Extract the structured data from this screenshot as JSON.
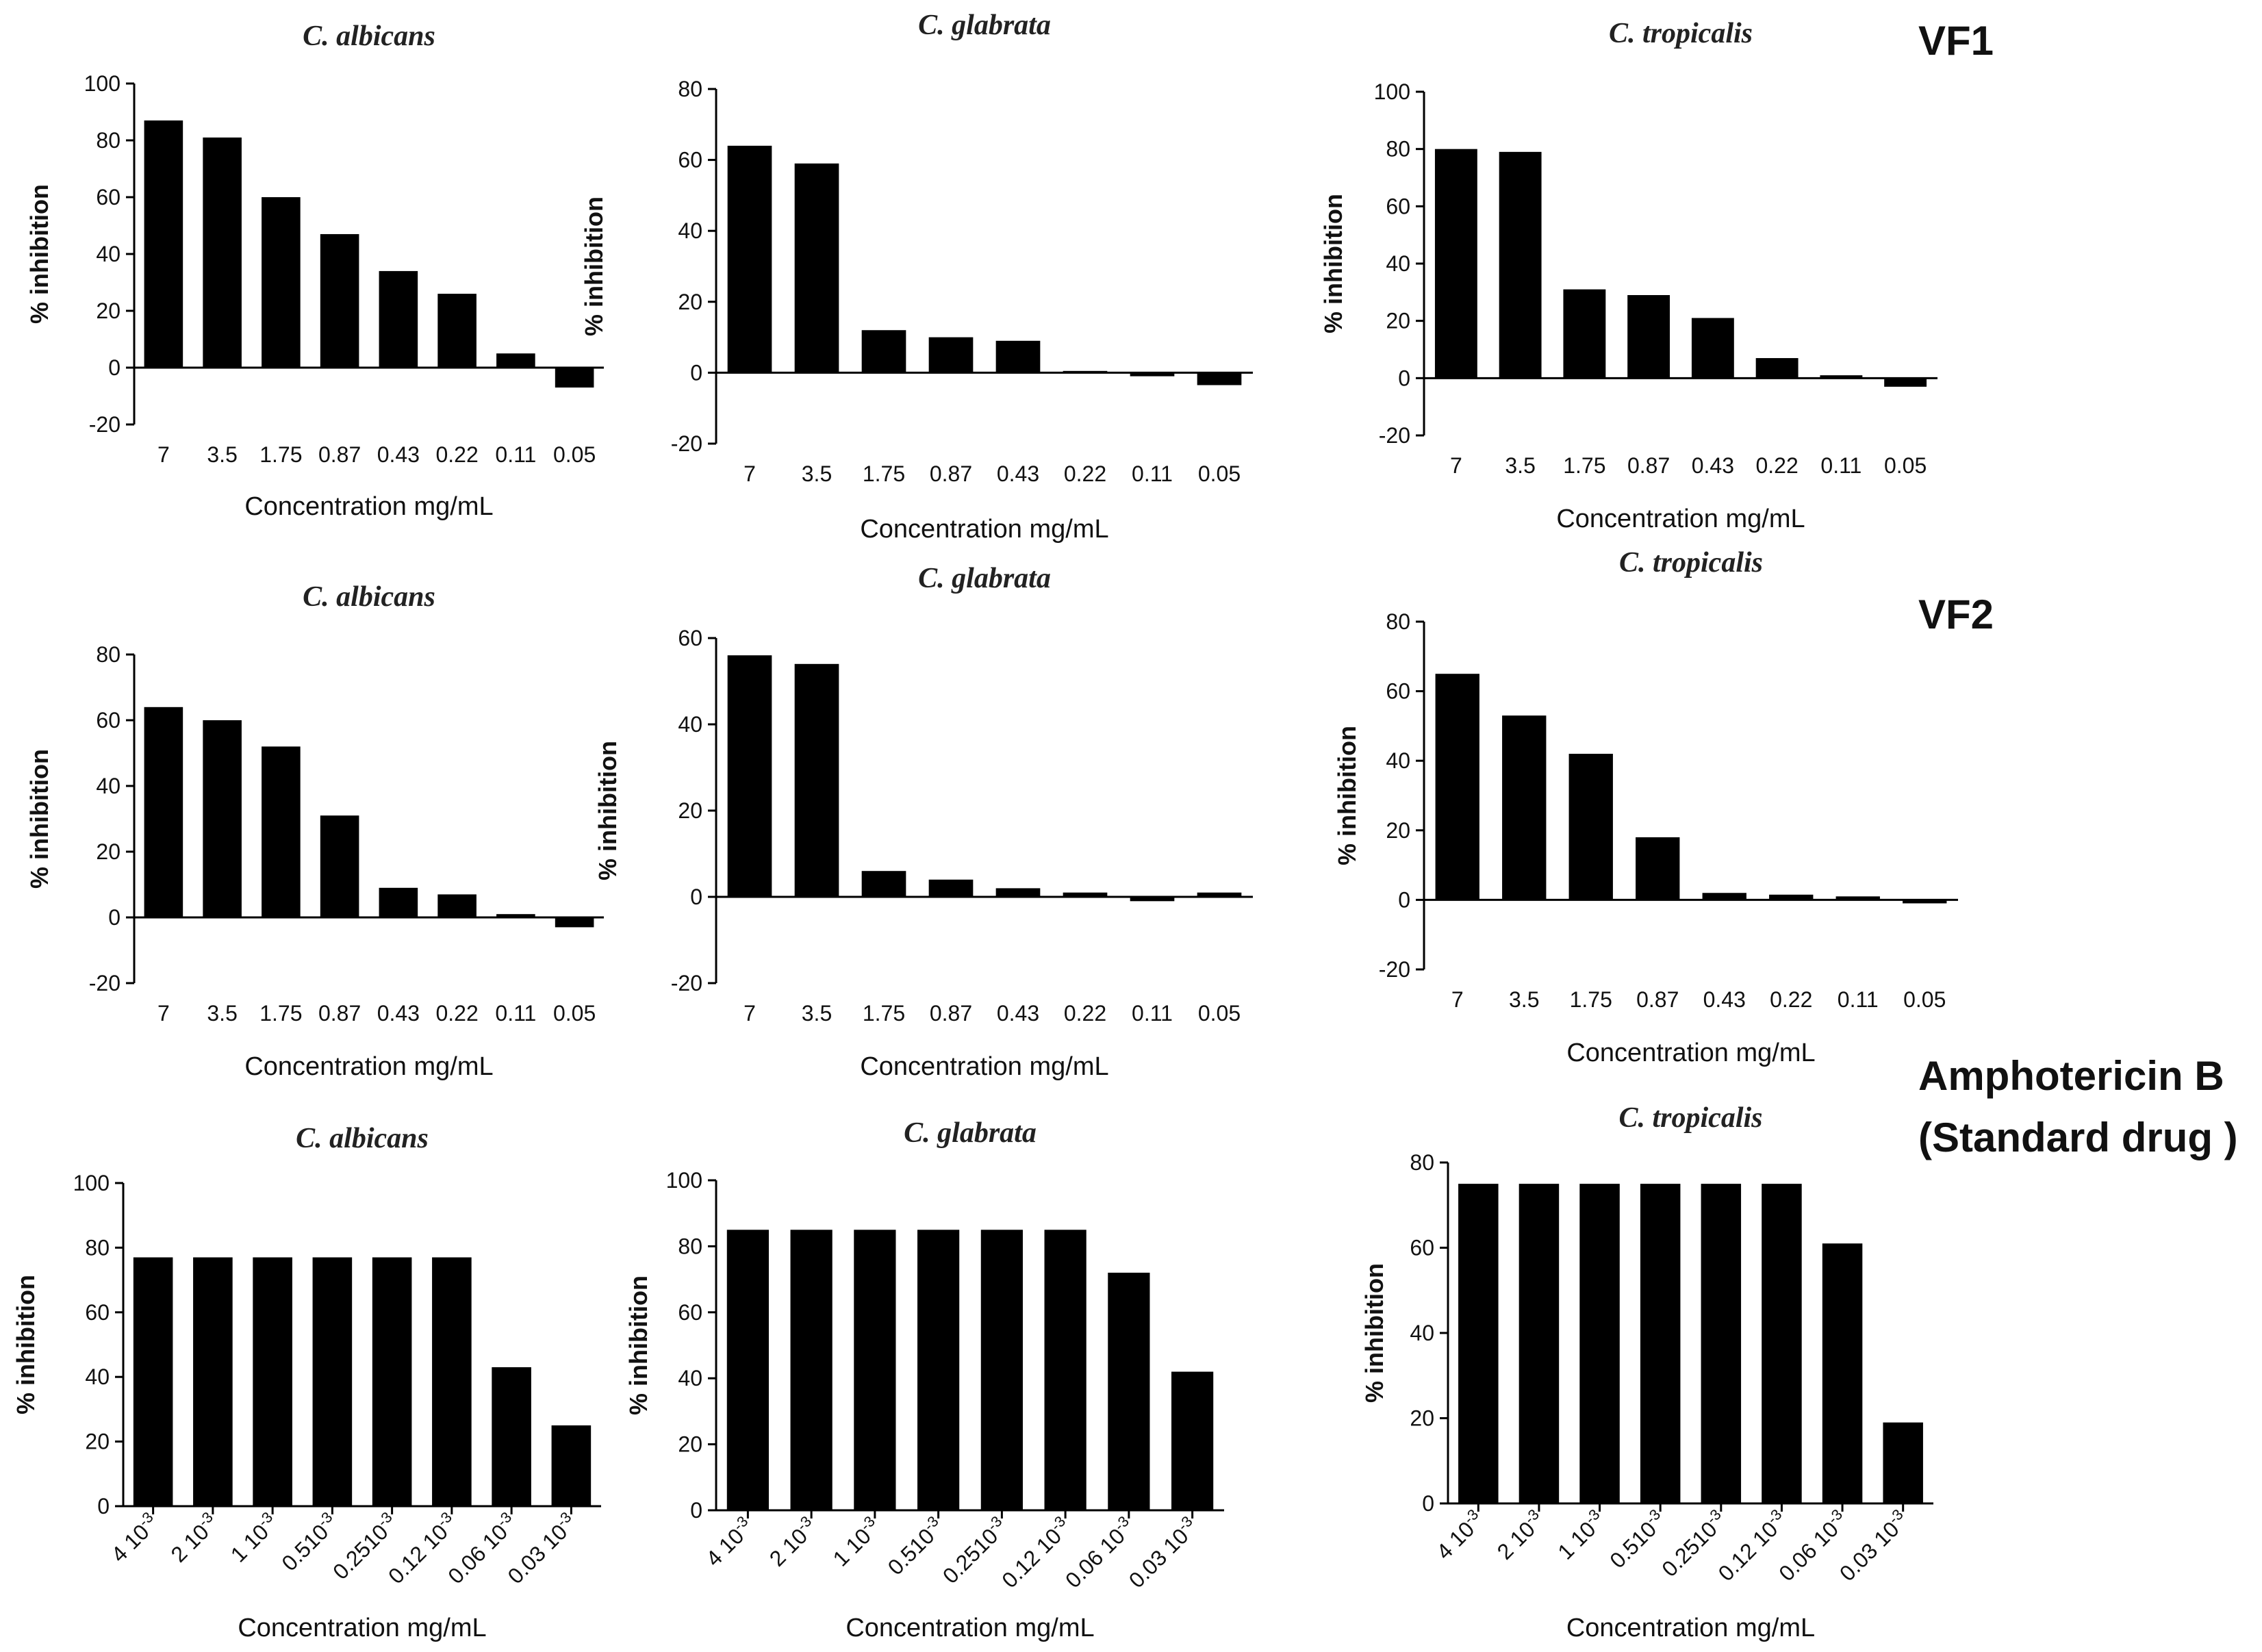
{
  "side_labels": {
    "vf1": "VF1",
    "vf2": "VF2",
    "amph_line1": "Amphotericin B",
    "amph_line2": "(Standard drug )"
  },
  "chart_data": [
    {
      "type": "bar",
      "title": "C. albicans",
      "xlabel": "Concentration mg/mL",
      "ylabel": "% inhibition",
      "categories": [
        "7",
        "3.5",
        "1.75",
        "0.87",
        "0.43",
        "0.22",
        "0.11",
        "0.05"
      ],
      "values": [
        87,
        81,
        60,
        47,
        34,
        26,
        5,
        -7
      ],
      "ylim": [
        -20,
        100
      ],
      "yticks": [
        -20,
        0,
        20,
        40,
        60,
        80,
        100
      ]
    },
    {
      "type": "bar",
      "title": "C. glabrata",
      "xlabel": "Concentration mg/mL",
      "ylabel": "% inhibition",
      "categories": [
        "7",
        "3.5",
        "1.75",
        "0.87",
        "0.43",
        "0.22",
        "0.11",
        "0.05"
      ],
      "values": [
        64,
        59,
        12,
        10,
        9,
        0.5,
        -1,
        -3.5
      ],
      "ylim": [
        -20,
        80
      ],
      "yticks": [
        -20,
        0,
        20,
        40,
        60,
        80
      ]
    },
    {
      "type": "bar",
      "title": "C. tropicalis",
      "xlabel": "Concentration mg/mL",
      "ylabel": "% inhibition",
      "categories": [
        "7",
        "3.5",
        "1.75",
        "0.87",
        "0.43",
        "0.22",
        "0.11",
        "0.05"
      ],
      "values": [
        80,
        79,
        31,
        29,
        21,
        7,
        1,
        -3
      ],
      "ylim": [
        -20,
        100
      ],
      "yticks": [
        -20,
        0,
        20,
        40,
        60,
        80,
        100
      ]
    },
    {
      "type": "bar",
      "title": "C. albicans",
      "xlabel": "Concentration mg/mL",
      "ylabel": "% inhibition",
      "categories": [
        "7",
        "3.5",
        "1.75",
        "0.87",
        "0.43",
        "0.22",
        "0.11",
        "0.05"
      ],
      "values": [
        64,
        60,
        52,
        31,
        9,
        7,
        1,
        -3
      ],
      "ylim": [
        -20,
        80
      ],
      "yticks": [
        -20,
        0,
        20,
        40,
        60,
        80
      ]
    },
    {
      "type": "bar",
      "title": "C. glabrata",
      "xlabel": "Concentration mg/mL",
      "ylabel": "% inhibition",
      "categories": [
        "7",
        "3.5",
        "1.75",
        "0.87",
        "0.43",
        "0.22",
        "0.11",
        "0.05"
      ],
      "values": [
        56,
        54,
        6,
        4,
        2,
        1,
        -1,
        1
      ],
      "ylim": [
        -20,
        60
      ],
      "yticks": [
        -20,
        0,
        20,
        40,
        60
      ]
    },
    {
      "type": "bar",
      "title": "C. tropicalis",
      "xlabel": "Concentration mg/mL",
      "ylabel": "% inhibition",
      "categories": [
        "7",
        "3.5",
        "1.75",
        "0.87",
        "0.43",
        "0.22",
        "0.11",
        "0.05"
      ],
      "values": [
        65,
        53,
        42,
        18,
        2,
        1.5,
        1,
        -1
      ],
      "ylim": [
        -20,
        80
      ],
      "yticks": [
        -20,
        0,
        20,
        40,
        60,
        80
      ]
    },
    {
      "type": "bar",
      "title": "C. albicans",
      "xlabel": "Concentration mg/mL",
      "ylabel": "% inhibition",
      "categories": [
        "4 10-3",
        "2 10-3",
        "1 10-3",
        "0.510-3",
        "0.2510-3",
        "0.12 10-3",
        "0.06 10-3",
        "0.03 10-3"
      ],
      "values": [
        77,
        77,
        77,
        77,
        77,
        77,
        43,
        25
      ],
      "ylim": [
        0,
        100
      ],
      "yticks": [
        0,
        20,
        40,
        60,
        80,
        100
      ]
    },
    {
      "type": "bar",
      "title": "C. glabrata",
      "xlabel": "Concentration mg/mL",
      "ylabel": "% inhibition",
      "categories": [
        "4 10-3",
        "2 10-3",
        "1 10-3",
        "0.510-3",
        "0.2510-3",
        "0.12 10-3",
        "0.06 10-3",
        "0.03 10-3"
      ],
      "values": [
        85,
        85,
        85,
        85,
        85,
        85,
        72,
        42
      ],
      "ylim": [
        0,
        100
      ],
      "yticks": [
        0,
        20,
        40,
        60,
        80,
        100
      ]
    },
    {
      "type": "bar",
      "title": "C. tropicalis",
      "xlabel": "Concentration mg/mL",
      "ylabel": "% inhibition",
      "categories": [
        "4 10-3",
        "2 10-3",
        "1 10-3",
        "0.510-3",
        "0.2510-3",
        "0.12 10-3",
        "0.06 10-3",
        "0.03 10-3"
      ],
      "values": [
        75,
        75,
        75,
        75,
        75,
        75,
        61,
        19
      ],
      "ylim": [
        0,
        80
      ],
      "yticks": [
        0,
        20,
        40,
        60,
        80
      ]
    }
  ]
}
